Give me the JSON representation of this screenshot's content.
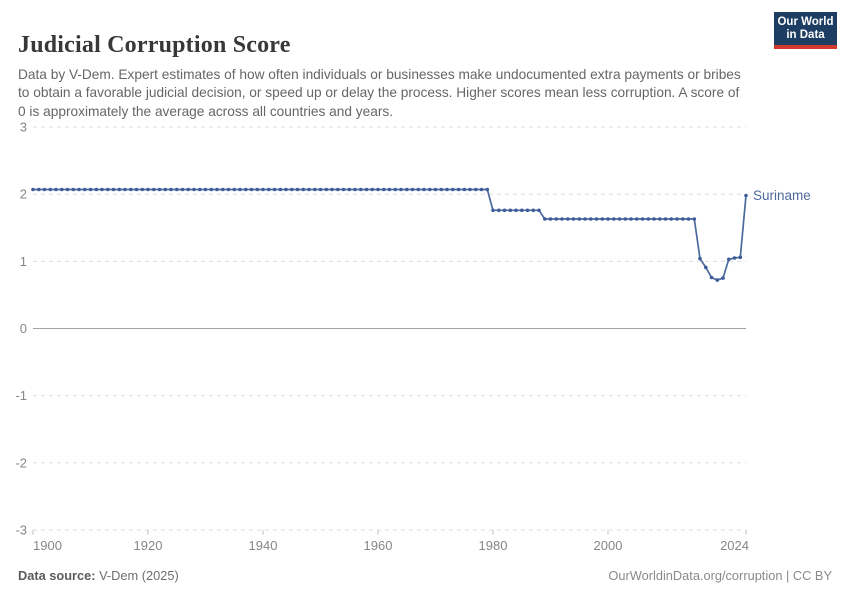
{
  "header": {
    "title": "Judicial Corruption Score",
    "subtitle": "Data by V-Dem. Expert estimates of how often individuals or businesses make undocumented extra payments or bribes to obtain a favorable judicial decision, or speed up or delay the process. Higher scores mean less corruption. A score of 0 is approximately the average across all countries and years.",
    "logo": {
      "line1": "Our World",
      "line2": "in Data"
    }
  },
  "chart_data": {
    "type": "line",
    "title": "Judicial Corruption Score",
    "entity_label": "Suriname",
    "xlim": [
      1900,
      2024
    ],
    "ylim": [
      -3,
      3
    ],
    "yticks": [
      3,
      2,
      1,
      0,
      -1,
      -2,
      -3
    ],
    "xticks": [
      1900,
      1920,
      1940,
      1960,
      1980,
      2000,
      2024
    ],
    "grid": "horizontal dashed gridlines, solid zero line",
    "legend_position": "label at end of line",
    "series": [
      {
        "name": "Suriname",
        "color": "#4c6a9c",
        "marker_color": "#3d5c99",
        "runs": [
          {
            "start": 1900,
            "end": 1979,
            "value": 2.07
          },
          {
            "start": 1980,
            "end": 1988,
            "value": 1.76
          },
          {
            "start": 1989,
            "end": 2015,
            "value": 1.63
          },
          {
            "start": 2016,
            "end": 2016,
            "value": 1.04
          },
          {
            "start": 2017,
            "end": 2017,
            "value": 0.91
          },
          {
            "start": 2018,
            "end": 2018,
            "value": 0.76
          },
          {
            "start": 2019,
            "end": 2019,
            "value": 0.72
          },
          {
            "start": 2020,
            "end": 2020,
            "value": 0.75
          },
          {
            "start": 2021,
            "end": 2021,
            "value": 1.03
          },
          {
            "start": 2022,
            "end": 2022,
            "value": 1.05
          },
          {
            "start": 2023,
            "end": 2023,
            "value": 1.06
          },
          {
            "start": 2024,
            "end": 2024,
            "value": 1.98
          }
        ]
      }
    ]
  },
  "footer": {
    "source_label": "Data source:",
    "source_value": " V-Dem (2025)",
    "credit": "OurWorldinData.org/corruption | CC BY"
  },
  "colors": {
    "accent_blue": "#4c6a9c",
    "logo_navy": "#1d3d63",
    "logo_red": "#d0392b",
    "gridline": "#dcdcdc",
    "zero_line": "#a3a3a3",
    "tick_text": "#878787",
    "axis_tick": "#c0c0c0"
  }
}
